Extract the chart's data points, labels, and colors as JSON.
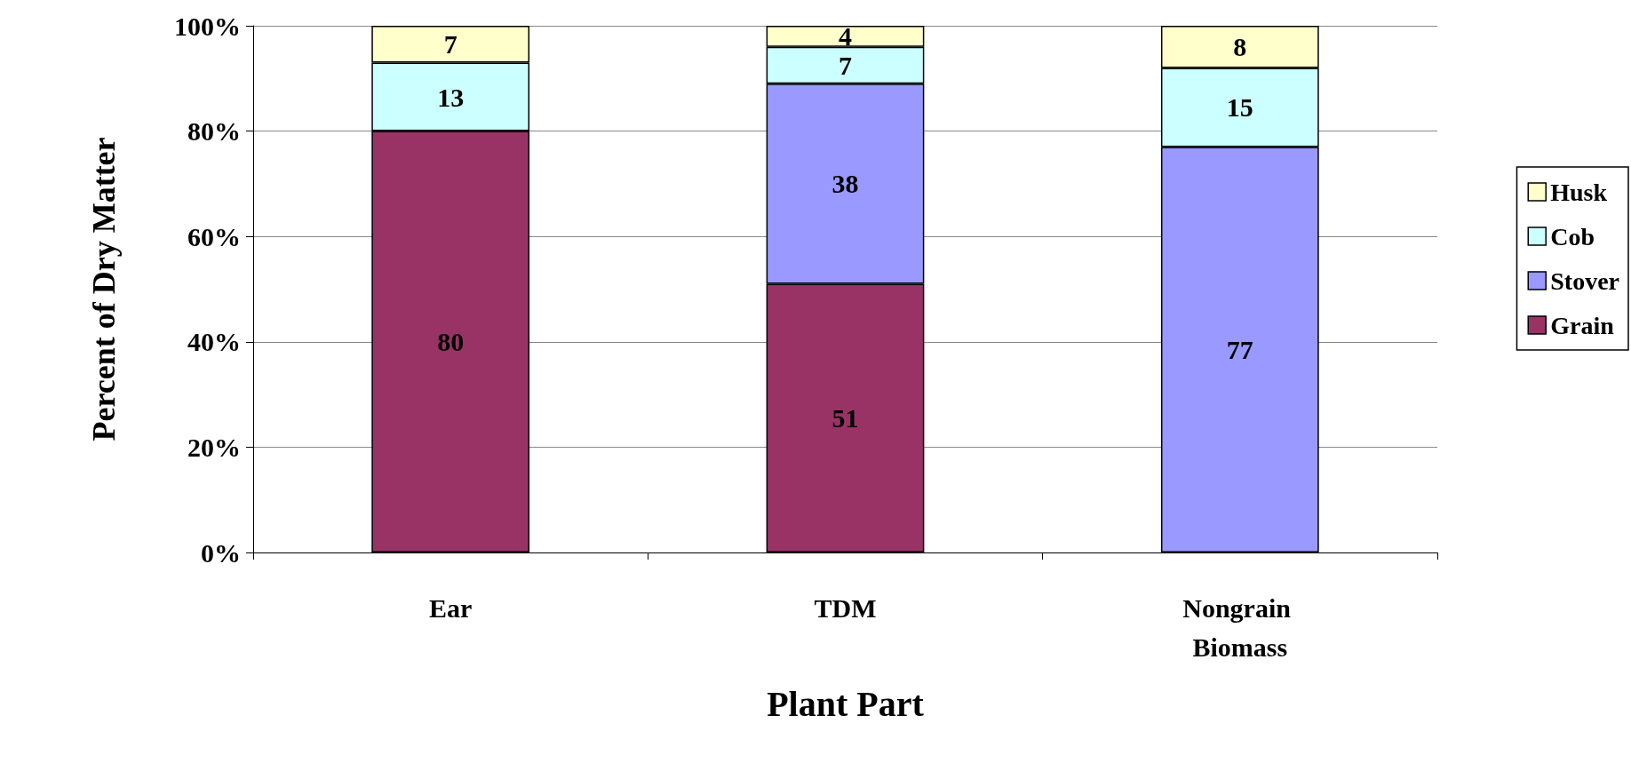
{
  "chart_data": {
    "type": "bar",
    "stacked": true,
    "xlabel": "Plant Part",
    "ylabel": "Percent of Dry Matter",
    "categories": [
      "Ear",
      "TDM",
      "Nongrain Biomass"
    ],
    "series": [
      {
        "name": "Grain",
        "color": "#993366",
        "values": [
          80,
          51,
          null
        ]
      },
      {
        "name": "Stover",
        "color": "#9999ff",
        "values": [
          null,
          38,
          77
        ]
      },
      {
        "name": "Cob",
        "color": "#ccffff",
        "values": [
          13,
          7,
          15
        ]
      },
      {
        "name": "Husk",
        "color": "#ffffcc",
        "values": [
          7,
          4,
          8
        ]
      }
    ],
    "ylim": [
      0,
      100
    ],
    "yticks": [
      {
        "value": 0,
        "label": "0%"
      },
      {
        "value": 20,
        "label": "20%"
      },
      {
        "value": 40,
        "label": "40%"
      },
      {
        "value": 60,
        "label": "60%"
      },
      {
        "value": 80,
        "label": "80%"
      },
      {
        "value": 100,
        "label": "100%"
      }
    ],
    "grid": "y",
    "legend": "right",
    "data_labels": true
  }
}
